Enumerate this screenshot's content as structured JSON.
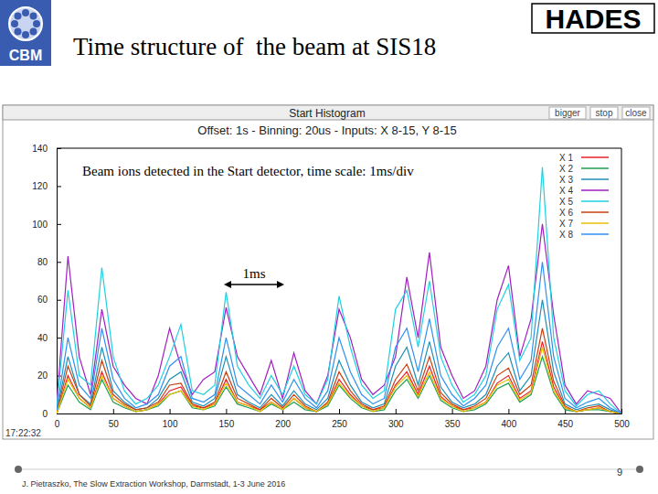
{
  "slide": {
    "title": "Time structure of  the beam at SIS18",
    "logos": [
      "CBM",
      "HADES"
    ],
    "buttons": [
      "bigger",
      "stop",
      "close"
    ],
    "timestamp": "17:22:32",
    "footer": "J. Pietraszko, The Slow Extraction Workshop, Darmstadt, 1-3 June 2016",
    "page": 9
  },
  "chart_data": {
    "type": "line",
    "title": "Start Histogram",
    "subtitle": "Offset: 1s - Binning: 20us - Inputs: X 8-15, Y 8-15",
    "annotations": [
      "Beam ions detected in the Start detector, time scale: 1ms/div",
      "1ms"
    ],
    "x": [
      0,
      10,
      20,
      30,
      40,
      50,
      60,
      70,
      80,
      90,
      100,
      110,
      120,
      130,
      140,
      150,
      160,
      170,
      180,
      190,
      200,
      210,
      220,
      230,
      240,
      250,
      260,
      270,
      280,
      290,
      300,
      310,
      320,
      330,
      340,
      350,
      360,
      370,
      380,
      390,
      400,
      410,
      420,
      430,
      440,
      450,
      460,
      470,
      480,
      490,
      500
    ],
    "series": [
      {
        "name": "X 1",
        "color": "#e8202a",
        "values": [
          0,
          20,
          8,
          3,
          22,
          8,
          4,
          1,
          2,
          5,
          12,
          14,
          4,
          3,
          5,
          18,
          6,
          4,
          2,
          6,
          2,
          8,
          3,
          1,
          5,
          18,
          10,
          4,
          2,
          3,
          15,
          22,
          10,
          25,
          9,
          4,
          2,
          3,
          6,
          16,
          20,
          8,
          12,
          38,
          14,
          3,
          1,
          2,
          3,
          1,
          0
        ]
      },
      {
        "name": "X 2",
        "color": "#20a050",
        "values": [
          0,
          15,
          6,
          2,
          18,
          6,
          3,
          1,
          2,
          4,
          10,
          12,
          3,
          2,
          4,
          14,
          5,
          3,
          1,
          5,
          2,
          6,
          2,
          1,
          4,
          15,
          8,
          3,
          1,
          2,
          12,
          18,
          8,
          20,
          7,
          3,
          1,
          2,
          5,
          13,
          16,
          6,
          10,
          30,
          11,
          2,
          1,
          2,
          2,
          1,
          0
        ]
      },
      {
        "name": "X 3",
        "color": "#1f8fb4",
        "values": [
          1,
          30,
          10,
          5,
          35,
          12,
          6,
          2,
          3,
          8,
          18,
          22,
          6,
          4,
          8,
          30,
          10,
          6,
          3,
          10,
          4,
          12,
          5,
          2,
          8,
          28,
          15,
          6,
          3,
          5,
          25,
          35,
          15,
          38,
          14,
          6,
          3,
          5,
          10,
          25,
          32,
          12,
          20,
          60,
          22,
          5,
          2,
          4,
          5,
          2,
          0
        ]
      },
      {
        "name": "X 4",
        "color": "#a020c0",
        "values": [
          5,
          83,
          30,
          10,
          55,
          25,
          15,
          8,
          5,
          20,
          45,
          25,
          10,
          18,
          22,
          56,
          30,
          20,
          10,
          28,
          8,
          32,
          12,
          5,
          20,
          55,
          40,
          18,
          10,
          15,
          30,
          72,
          40,
          85,
          35,
          20,
          8,
          12,
          25,
          60,
          78,
          30,
          50,
          100,
          52,
          15,
          5,
          12,
          10,
          8,
          0
        ]
      },
      {
        "name": "X 5",
        "color": "#20d0e0",
        "values": [
          3,
          65,
          20,
          15,
          77,
          30,
          12,
          5,
          8,
          15,
          30,
          47,
          12,
          10,
          15,
          64,
          25,
          15,
          8,
          20,
          10,
          25,
          10,
          5,
          18,
          62,
          35,
          15,
          8,
          12,
          55,
          65,
          35,
          70,
          30,
          15,
          6,
          10,
          20,
          55,
          68,
          28,
          40,
          130,
          40,
          12,
          4,
          10,
          12,
          5,
          0
        ]
      },
      {
        "name": "X 6",
        "color": "#c84010",
        "values": [
          0,
          25,
          10,
          4,
          28,
          10,
          5,
          2,
          3,
          6,
          15,
          16,
          5,
          3,
          6,
          22,
          8,
          5,
          2,
          8,
          3,
          10,
          4,
          1,
          6,
          22,
          12,
          5,
          2,
          4,
          18,
          26,
          12,
          30,
          11,
          5,
          2,
          4,
          8,
          20,
          24,
          10,
          15,
          45,
          17,
          4,
          1,
          3,
          4,
          1,
          0
        ]
      },
      {
        "name": "X 7",
        "color": "#e8c000",
        "values": [
          0,
          18,
          8,
          3,
          20,
          8,
          4,
          1,
          2,
          5,
          10,
          12,
          4,
          2,
          5,
          16,
          6,
          4,
          1,
          6,
          2,
          8,
          3,
          1,
          5,
          16,
          9,
          4,
          1,
          3,
          14,
          20,
          9,
          22,
          8,
          4,
          1,
          3,
          6,
          15,
          18,
          7,
          11,
          35,
          12,
          3,
          1,
          2,
          3,
          1,
          0
        ]
      },
      {
        "name": "X 8",
        "color": "#3090f0",
        "values": [
          2,
          40,
          15,
          8,
          45,
          18,
          8,
          3,
          5,
          10,
          25,
          30,
          8,
          6,
          10,
          40,
          15,
          10,
          5,
          15,
          6,
          18,
          8,
          3,
          12,
          40,
          22,
          10,
          5,
          8,
          35,
          45,
          22,
          50,
          20,
          10,
          4,
          8,
          15,
          35,
          45,
          18,
          28,
          80,
          30,
          8,
          3,
          6,
          8,
          3,
          0
        ]
      }
    ],
    "xlim": [
      0,
      500
    ],
    "ylim": [
      0,
      140
    ],
    "xticks": [
      0,
      50,
      100,
      150,
      200,
      250,
      300,
      350,
      400,
      450,
      500
    ],
    "yticks": [
      0,
      20,
      40,
      60,
      80,
      100,
      120,
      140
    ],
    "legend": "top-right"
  }
}
